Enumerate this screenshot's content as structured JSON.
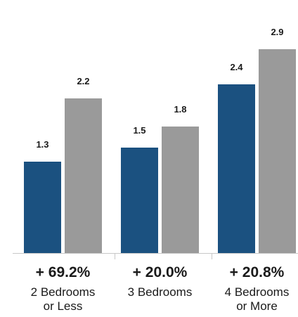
{
  "chart_data": {
    "type": "bar",
    "categories": [
      "2 Bedrooms or Less",
      "3 Bedrooms",
      "4 Bedrooms or More"
    ],
    "category_lines": [
      [
        "2 Bedrooms",
        "or Less"
      ],
      [
        "3 Bedrooms"
      ],
      [
        "4 Bedrooms",
        "or More"
      ]
    ],
    "series": [
      {
        "values": [
          1.3,
          1.5,
          2.4
        ],
        "labels": [
          "1.3",
          "1.5",
          "2.4"
        ],
        "color": "#1b5180"
      },
      {
        "values": [
          2.2,
          1.8,
          2.9
        ],
        "labels": [
          "2.2",
          "1.8",
          "2.9"
        ],
        "color": "#9a9a9a"
      }
    ],
    "changes": [
      "+ 69.2%",
      "+ 20.0%",
      "+ 20.8%"
    ],
    "ylim": [
      0,
      3.2
    ],
    "grid": false,
    "axis_color": "#c8c8c8"
  }
}
